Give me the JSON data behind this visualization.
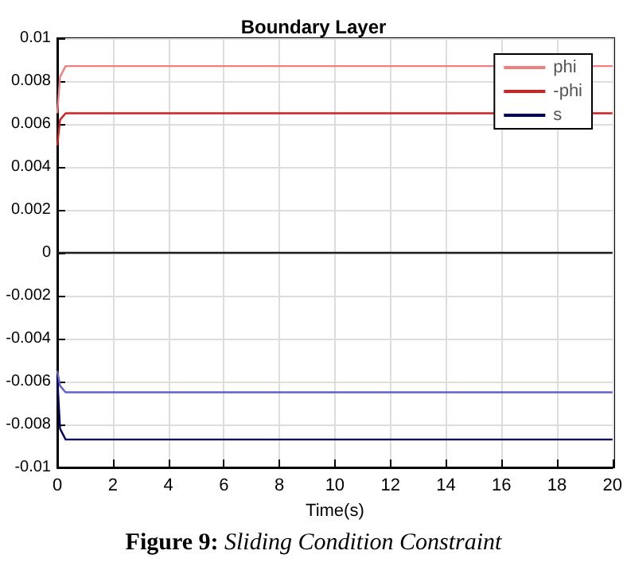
{
  "chart_data": {
    "type": "line",
    "title": "Boundary Layer",
    "xlabel": "Time(s)",
    "annotations": [
      "Figure 9: Sliding Condition Constraint"
    ],
    "xlim": [
      0,
      20
    ],
    "xticks": [
      0,
      2,
      4,
      6,
      8,
      10,
      12,
      14,
      16,
      18,
      20
    ],
    "ylim": [
      -0.01,
      0.01
    ],
    "yticks": [
      -0.01,
      -0.008,
      -0.006,
      -0.004,
      -0.002,
      0,
      0.002,
      0.004,
      0.006,
      0.008,
      0.01
    ],
    "grid": true,
    "legend": "top right",
    "marker": "none",
    "line_style": "solid",
    "series": [
      {
        "name": "phi",
        "color": "#f08080",
        "x": [
          0,
          0.1,
          0.3,
          20
        ],
        "values": [
          0.0065,
          0.0082,
          0.0087,
          0.0087
        ]
      },
      {
        "name": "-phi",
        "color": "#d02020",
        "x": [
          0,
          0.1,
          0.3,
          20
        ],
        "values": [
          0.005,
          0.0062,
          0.0065,
          0.0065
        ]
      },
      {
        "name": "s",
        "color": "#000060",
        "x": [
          0,
          0.1,
          0.3,
          20
        ],
        "values": [
          -0.0058,
          -0.0082,
          -0.0087,
          -0.0087
        ]
      },
      {
        "color": "#6060d0",
        "x": [
          0,
          0.1,
          0.3,
          20
        ],
        "values": [
          -0.0055,
          -0.0062,
          -0.0065,
          -0.0065
        ]
      },
      {
        "color": "#202020",
        "x": [
          0,
          20
        ],
        "values": [
          0,
          0
        ]
      }
    ]
  }
}
